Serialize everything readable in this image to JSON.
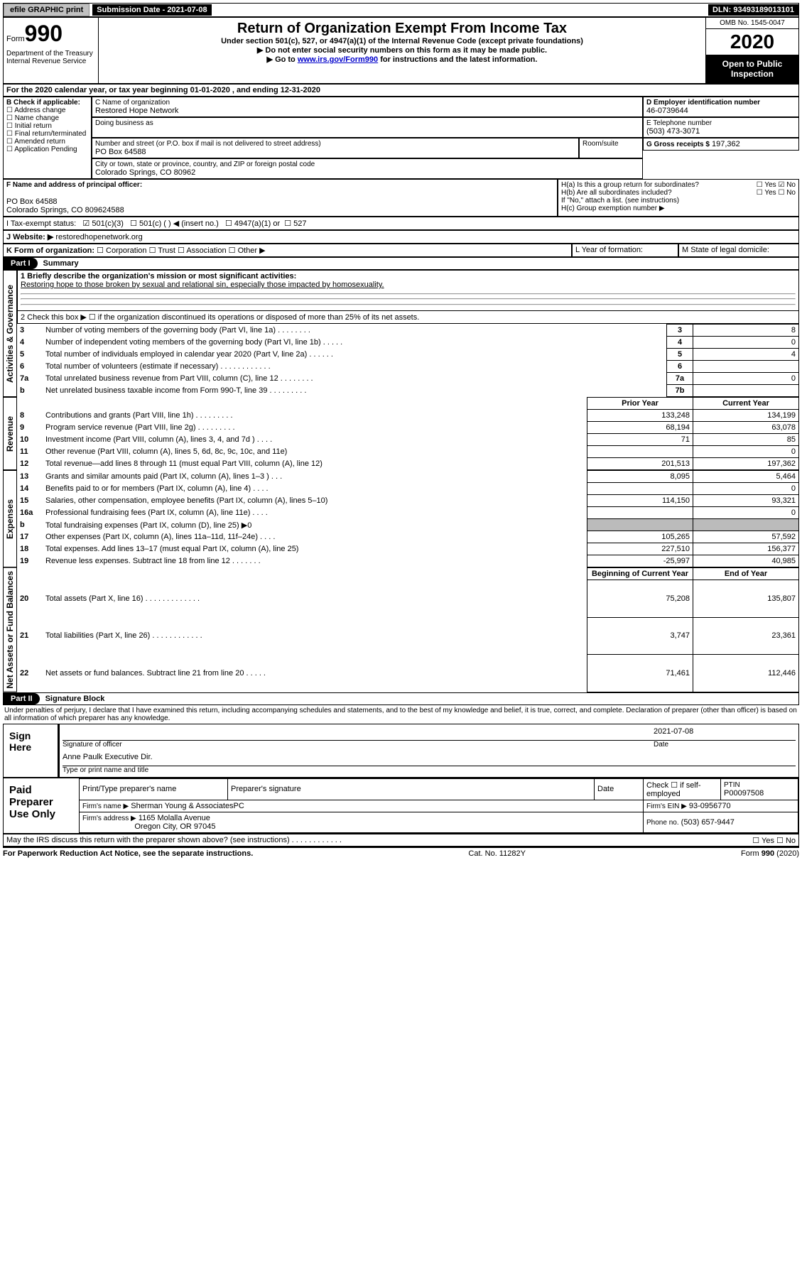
{
  "topbar": {
    "btn1": "efile GRAPHIC print",
    "submission_label": "Submission Date - 2021-07-08",
    "dln": "DLN: 93493189013101"
  },
  "header": {
    "form_word": "Form",
    "form_no": "990",
    "dept": "Department of the Treasury\nInternal Revenue Service",
    "title": "Return of Organization Exempt From Income Tax",
    "sub1": "Under section 501(c), 527, or 4947(a)(1) of the Internal Revenue Code (except private foundations)",
    "sub2": "Do not enter social security numbers on this form as it may be made public.",
    "sub3_pre": "Go to ",
    "sub3_link": "www.irs.gov/Form990",
    "sub3_post": " for instructions and the latest information.",
    "omb": "OMB No. 1545-0047",
    "year": "2020",
    "open": "Open to Public Inspection"
  },
  "line_a": "For the 2020 calendar year, or tax year beginning 01-01-2020    , and ending 12-31-2020",
  "box_b": {
    "label": "B Check if applicable:",
    "items": [
      "Address change",
      "Name change",
      "Initial return",
      "Final return/terminated",
      "Amended return",
      "Application Pending"
    ]
  },
  "box_c": {
    "label": "C Name of organization",
    "name": "Restored Hope Network",
    "dba_label": "Doing business as",
    "street_label": "Number and street (or P.O. box if mail is not delivered to street address)",
    "street": "PO Box 64588",
    "room_label": "Room/suite",
    "city_label": "City or town, state or province, country, and ZIP or foreign postal code",
    "city": "Colorado Springs, CO  80962"
  },
  "box_d": {
    "label": "D Employer identification number",
    "val": "46-0739644"
  },
  "box_e": {
    "label": "E Telephone number",
    "val": "(503) 473-3071"
  },
  "box_g": {
    "label": "G Gross receipts $",
    "val": "197,362"
  },
  "box_f": {
    "label": "F  Name and address of principal officer:",
    "line1": "PO Box 64588",
    "line2": "Colorado Springs, CO  809624588"
  },
  "box_h": {
    "ha": "H(a)  Is this a group return for subordinates?",
    "hb": "H(b)  Are all subordinates included?",
    "hb_note": "If \"No,\" attach a list. (see instructions)",
    "hc": "H(c)  Group exemption number ▶",
    "yes": "Yes",
    "no": "No"
  },
  "tax_status": {
    "label": "I   Tax-exempt status:",
    "c3": "501(c)(3)",
    "c": "501(c) (  ) ◀ (insert no.)",
    "a1": "4947(a)(1) or",
    "s527": "527"
  },
  "box_j": {
    "label": "J   Website: ▶",
    "val": "restoredhopenetwork.org"
  },
  "box_k": {
    "label": "K Form of organization:",
    "opts": [
      "Corporation",
      "Trust",
      "Association",
      "Other ▶"
    ]
  },
  "box_l": "L Year of formation:",
  "box_m": "M State of legal domicile:",
  "part1": {
    "badge": "Part I",
    "title": "Summary"
  },
  "sections": {
    "gov": "Activities & Governance",
    "rev": "Revenue",
    "exp": "Expenses",
    "net": "Net Assets or Fund Balances"
  },
  "q1": {
    "label": "1  Briefly describe the organization's mission or most significant activities:",
    "text": "Restoring hope to those broken by sexual and relational sin, especially those impacted by homosexuality."
  },
  "q2": "2   Check this box ▶ ☐  if the organization discontinued its operations or disposed of more than 25% of its net assets.",
  "gov_rows": [
    {
      "n": "3",
      "label": "Number of voting members of the governing body (Part VI, line 1a)   .   .   .   .   .   .   .   .",
      "box": "3",
      "val": "8"
    },
    {
      "n": "4",
      "label": "Number of independent voting members of the governing body (Part VI, line 1b)   .   .   .   .   .",
      "box": "4",
      "val": "0"
    },
    {
      "n": "5",
      "label": "Total number of individuals employed in calendar year 2020 (Part V, line 2a)   .   .   .   .   .   .",
      "box": "5",
      "val": "4"
    },
    {
      "n": "6",
      "label": "Total number of volunteers (estimate if necessary)   .   .   .   .   .   .   .   .   .   .   .   .",
      "box": "6",
      "val": ""
    },
    {
      "n": "7a",
      "label": "Total unrelated business revenue from Part VIII, column (C), line 12   .   .   .   .   .   .   .   .",
      "box": "7a",
      "val": "0"
    },
    {
      "n": "b",
      "label": "Net unrelated business taxable income from Form 990-T, line 39   .   .   .   .   .   .   .   .   .",
      "box": "7b",
      "val": ""
    }
  ],
  "rev_header": {
    "prior": "Prior Year",
    "current": "Current Year"
  },
  "rev_rows": [
    {
      "n": "8",
      "label": "Contributions and grants (Part VIII, line 1h)   .   .   .   .   .   .   .   .   .",
      "p": "133,248",
      "c": "134,199"
    },
    {
      "n": "9",
      "label": "Program service revenue (Part VIII, line 2g)   .   .   .   .   .   .   .   .   .",
      "p": "68,194",
      "c": "63,078"
    },
    {
      "n": "10",
      "label": "Investment income (Part VIII, column (A), lines 3, 4, and 7d )   .   .   .   .",
      "p": "71",
      "c": "85"
    },
    {
      "n": "11",
      "label": "Other revenue (Part VIII, column (A), lines 5, 6d, 8c, 9c, 10c, and 11e)",
      "p": "",
      "c": "0"
    },
    {
      "n": "12",
      "label": "Total revenue—add lines 8 through 11 (must equal Part VIII, column (A), line 12)",
      "p": "201,513",
      "c": "197,362"
    }
  ],
  "exp_rows": [
    {
      "n": "13",
      "label": "Grants and similar amounts paid (Part IX, column (A), lines 1–3 )   .   .   .",
      "p": "8,095",
      "c": "5,464"
    },
    {
      "n": "14",
      "label": "Benefits paid to or for members (Part IX, column (A), line 4)   .   .   .   .",
      "p": "",
      "c": "0"
    },
    {
      "n": "15",
      "label": "Salaries, other compensation, employee benefits (Part IX, column (A), lines 5–10)",
      "p": "114,150",
      "c": "93,321"
    },
    {
      "n": "16a",
      "label": "Professional fundraising fees (Part IX, column (A), line 11e)   .   .   .   .",
      "p": "",
      "c": "0"
    },
    {
      "n": "b",
      "label": "Total fundraising expenses (Part IX, column (D), line 25) ▶0",
      "p": "GRAY",
      "c": "GRAY"
    },
    {
      "n": "17",
      "label": "Other expenses (Part IX, column (A), lines 11a–11d, 11f–24e)   .   .   .   .",
      "p": "105,265",
      "c": "57,592"
    },
    {
      "n": "18",
      "label": "Total expenses. Add lines 13–17 (must equal Part IX, column (A), line 25)",
      "p": "227,510",
      "c": "156,377"
    },
    {
      "n": "19",
      "label": "Revenue less expenses. Subtract line 18 from line 12   .   .   .   .   .   .   .",
      "p": "-25,997",
      "c": "40,985"
    }
  ],
  "net_header": {
    "b": "Beginning of Current Year",
    "e": "End of Year"
  },
  "net_rows": [
    {
      "n": "20",
      "label": "Total assets (Part X, line 16)   .   .   .   .   .   .   .   .   .   .   .   .   .",
      "p": "75,208",
      "c": "135,807"
    },
    {
      "n": "21",
      "label": "Total liabilities (Part X, line 26)   .   .   .   .   .   .   .   .   .   .   .   .",
      "p": "3,747",
      "c": "23,361"
    },
    {
      "n": "22",
      "label": "Net assets or fund balances. Subtract line 21 from line 20   .   .   .   .   .",
      "p": "71,461",
      "c": "112,446"
    }
  ],
  "part2": {
    "badge": "Part II",
    "title": "Signature Block"
  },
  "sig_declaration": "Under penalties of perjury, I declare that I have examined this return, including accompanying schedules and statements, and to the best of my knowledge and belief, it is true, correct, and complete. Declaration of preparer (other than officer) is based on all information of which preparer has any knowledge.",
  "sign_here": {
    "label": "Sign Here",
    "sig_date": "2021-07-08",
    "sig_officer": "Signature of officer",
    "date_label": "Date",
    "name": "Anne Paulk  Executive Dir.",
    "name_label": "Type or print name and title"
  },
  "paid_prep": {
    "label": "Paid Preparer Use Only",
    "print_name": "Print/Type preparer's name",
    "prep_sig": "Preparer's signature",
    "date": "Date",
    "check_self": "Check ☐  if self-employed",
    "ptin_label": "PTIN",
    "ptin": "P00097508",
    "firm_name_label": "Firm's name     ▶",
    "firm_name": "Sherman Young & AssociatesPC",
    "firm_ein_label": "Firm's EIN ▶",
    "firm_ein": "93-0956770",
    "firm_addr_label": "Firm's address ▶",
    "firm_addr1": "1165 Molalla Avenue",
    "firm_addr2": "Oregon City, OR  97045",
    "phone_label": "Phone no.",
    "phone": "(503) 657-9447"
  },
  "discuss": "May the IRS discuss this return with the preparer shown above? (see instructions)   .   .   .   .   .   .   .   .   .   .   .   .",
  "footer": {
    "left": "For Paperwork Reduction Act Notice, see the separate instructions.",
    "mid": "Cat. No. 11282Y",
    "right": "Form 990 (2020)"
  }
}
